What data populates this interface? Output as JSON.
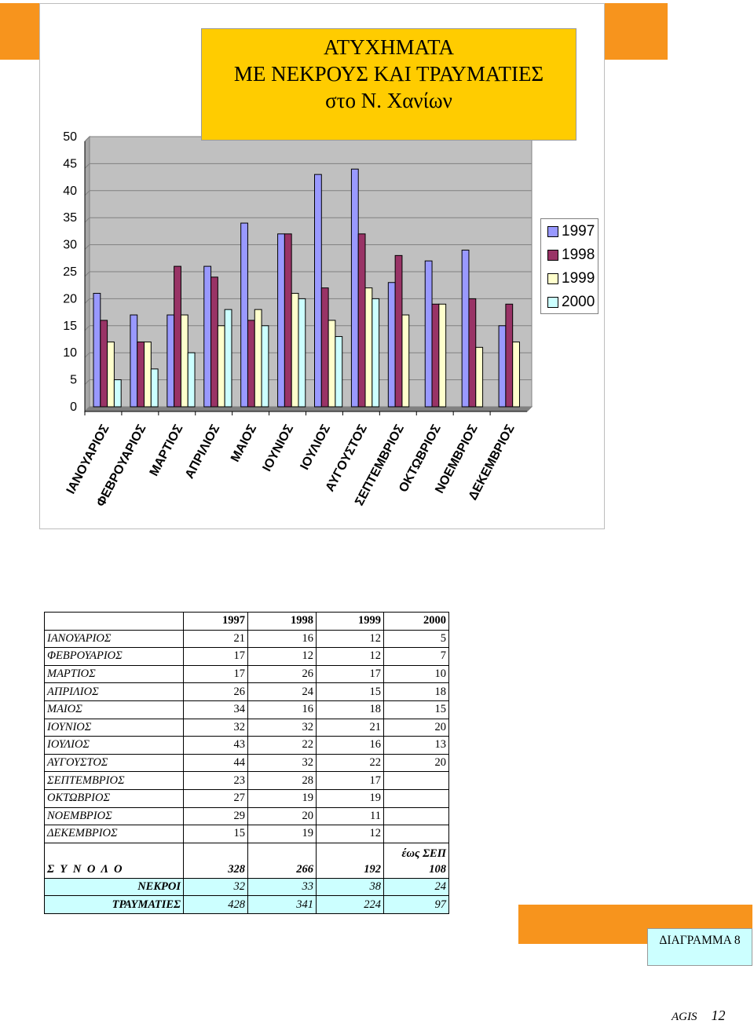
{
  "chart_data": {
    "type": "bar",
    "title": "ΑΤΥΧΗΜΑΤΑ\nΜΕ ΝΕΚΡΟΥΣ ΚΑΙ ΤΡΑΥΜΑΤΙΕΣ\nστο Ν. Χανίων",
    "title_lines": [
      "ΑΤΥΧΗΜΑΤΑ",
      "ΜΕ ΝΕΚΡΟΥΣ ΚΑΙ ΤΡΑΥΜΑΤΙΕΣ",
      "στο Ν. Χανίων"
    ],
    "categories": [
      "ΙΑΝΟΥΑΡΙΟΣ",
      "ΦΕΒΡΟΥΑΡΙΟΣ",
      "ΜΑΡΤΙΟΣ",
      "ΑΠΡΙΛΙΟΣ",
      "ΜΑΙΟΣ",
      "ΙΟΥΝΙΟΣ",
      "ΙΟΥΛΙΟΣ",
      "ΑΥΓΟΥΣΤΟΣ",
      "ΣΕΠΤΕΜΒΡΙΟΣ",
      "ΟΚΤΩΒΡΙΟΣ",
      "ΝΟΕΜΒΡΙΟΣ",
      "ΔΕΚΕΜΒΡΙΟΣ"
    ],
    "series": [
      {
        "name": "1997",
        "color": "#9999ff",
        "values": [
          21,
          17,
          17,
          26,
          34,
          32,
          43,
          44,
          23,
          27,
          29,
          15
        ]
      },
      {
        "name": "1998",
        "color": "#993366",
        "values": [
          16,
          12,
          26,
          24,
          16,
          32,
          22,
          32,
          28,
          19,
          20,
          19
        ]
      },
      {
        "name": "1999",
        "color": "#ffffcc",
        "values": [
          12,
          12,
          17,
          15,
          18,
          21,
          16,
          22,
          17,
          19,
          11,
          12
        ]
      },
      {
        "name": "2000",
        "color": "#ccffff",
        "values": [
          5,
          7,
          10,
          18,
          15,
          20,
          13,
          20,
          null,
          null,
          null,
          null
        ]
      }
    ],
    "ylim": [
      0,
      50
    ],
    "yticks": [
      0,
      5,
      10,
      15,
      20,
      25,
      30,
      35,
      40,
      45,
      50
    ],
    "legend_position": "right",
    "grid": true,
    "plot_background": "#c0c0c0",
    "title_background": "#ffcc00"
  },
  "table": {
    "header": [
      "",
      "1997",
      "1998",
      "1999",
      "2000"
    ],
    "rows": [
      [
        "ΙΑΝΟΥΑΡΙΟΣ",
        "21",
        "16",
        "12",
        "5"
      ],
      [
        "ΦΕΒΡΟΥΑΡΙΟΣ",
        "17",
        "12",
        "12",
        "7"
      ],
      [
        "ΜΑΡΤΙΟΣ",
        "17",
        "26",
        "17",
        "10"
      ],
      [
        "ΑΠΡΙΛΙΟΣ",
        "26",
        "24",
        "15",
        "18"
      ],
      [
        "ΜΑΙΟΣ",
        "34",
        "16",
        "18",
        "15"
      ],
      [
        "ΙΟΥΝΙΟΣ",
        "32",
        "32",
        "21",
        "20"
      ],
      [
        "ΙΟΥΛΙΟΣ",
        "43",
        "22",
        "16",
        "13"
      ],
      [
        "ΑΥΓΟΥΣΤΟΣ",
        "44",
        "32",
        "22",
        "20"
      ],
      [
        "ΣΕΠΤΕΜΒΡΙΟΣ",
        "23",
        "28",
        "17",
        ""
      ],
      [
        "ΟΚΤΩΒΡΙΟΣ",
        "27",
        "19",
        "19",
        ""
      ],
      [
        "ΝΟΕΜΒΡΙΟΣ",
        "29",
        "20",
        "11",
        ""
      ],
      [
        "ΔΕΚΕΜΒΡΙΟΣ",
        "15",
        "19",
        "12",
        ""
      ]
    ],
    "total": {
      "label": "Σ Υ Ν Ο Λ Ο",
      "values": [
        "328",
        "266",
        "192",
        "108"
      ],
      "note": "έως ΣΕΠ"
    },
    "deaths": {
      "label": "ΝΕΚΡΟΙ",
      "values": [
        "32",
        "33",
        "38",
        "24"
      ]
    },
    "injured": {
      "label": "ΤΡΑΥΜΑΤΙΕΣ",
      "values": [
        "428",
        "341",
        "224",
        "97"
      ]
    }
  },
  "diagram_label": "ΔΙΑΓΡΑΜΜΑ 8",
  "footer": {
    "brand": "AGIS",
    "page": "12"
  },
  "colors": {
    "accent_orange": "#f7941d",
    "cyan_highlight": "#ccffff"
  }
}
